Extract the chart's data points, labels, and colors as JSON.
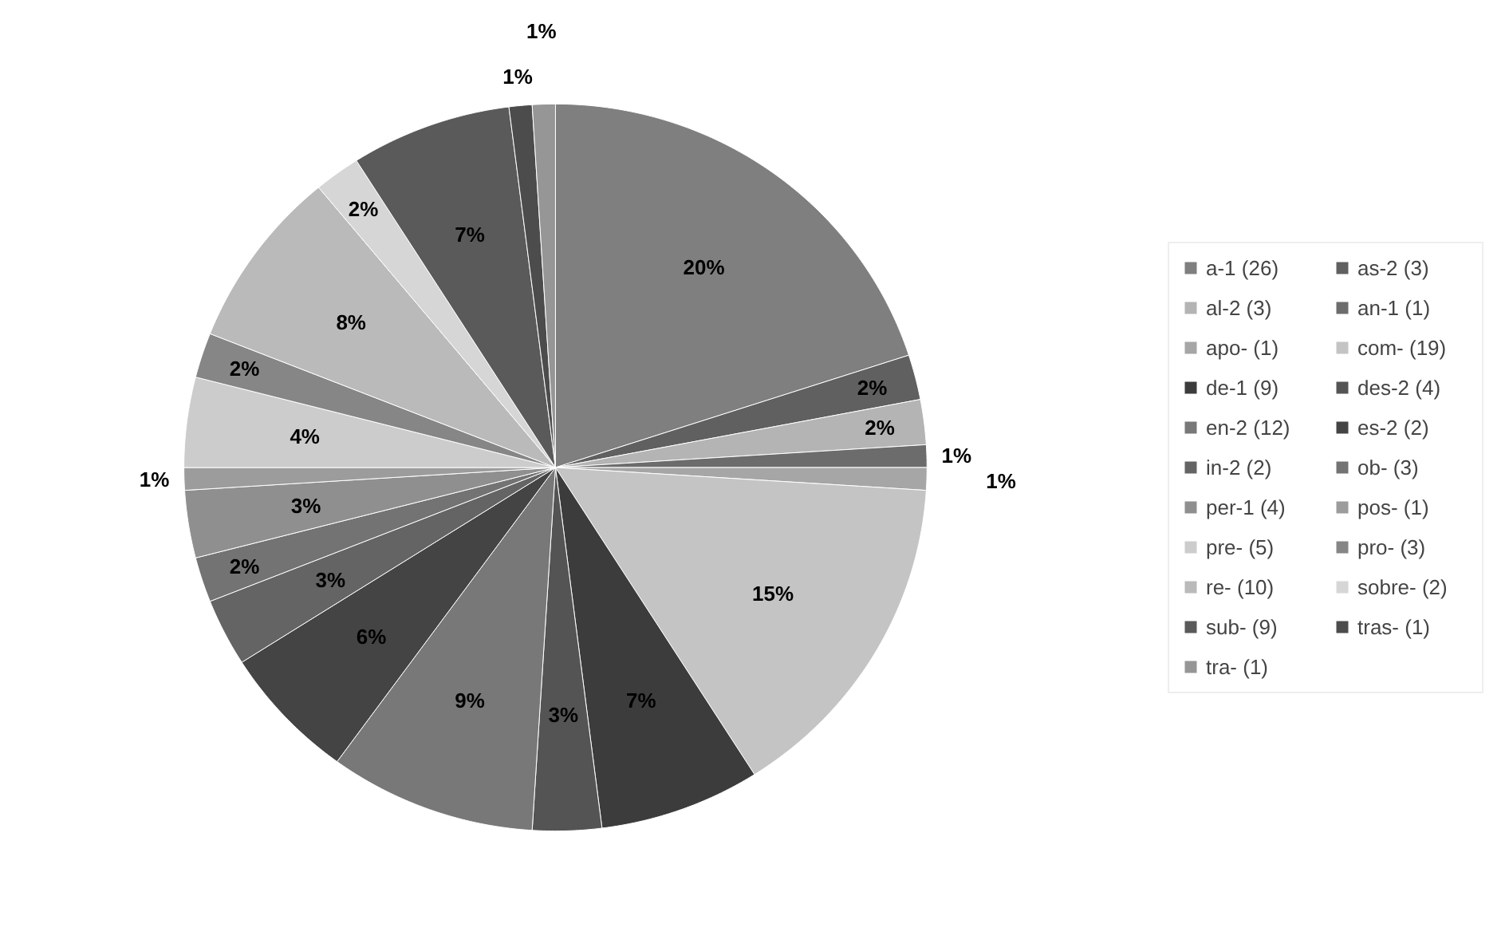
{
  "chart_data": {
    "type": "pie",
    "categories": [
      "a-1 (26)",
      "as-2 (3)",
      "al-2 (3)",
      "an-1 (1)",
      "apo- (1)",
      "com- (19)",
      "de-1 (9)",
      "des-2 (4)",
      "en-2 (12)",
      "es-2 (2)",
      "in-2 (2)",
      "ob- (3)",
      "per-1 (4)",
      "pos- (1)",
      "pre- (5)",
      "pro- (3)",
      "re- (10)",
      "sobre- (2)",
      "sub- (9)",
      "tras- (1)",
      "tra- (1)"
    ],
    "values": [
      20,
      2,
      2,
      1,
      1,
      15,
      7,
      3,
      9,
      6,
      3,
      2,
      3,
      1,
      4,
      2,
      8,
      2,
      7,
      1,
      1
    ],
    "colors": [
      "#7f7f7f",
      "#606060",
      "#b4b4b4",
      "#6c6c6c",
      "#a6a6a6",
      "#c4c4c4",
      "#3c3c3c",
      "#545454",
      "#787878",
      "#444444",
      "#646464",
      "#737373",
      "#8f8f8f",
      "#9c9c9c",
      "#cccccc",
      "#868686",
      "#bababa",
      "#d6d6d6",
      "#5a5a5a",
      "#4c4c4c",
      "#969696"
    ],
    "value_labels": [
      "20%",
      "2%",
      "2%",
      "1%",
      "1%",
      "15%",
      "7%",
      "3%",
      "9%",
      "6%",
      "3%",
      "2%",
      "3%",
      "1%",
      "4%",
      "2%",
      "8%",
      "2%",
      "7%",
      "1%",
      "1%"
    ],
    "legend": "right"
  }
}
